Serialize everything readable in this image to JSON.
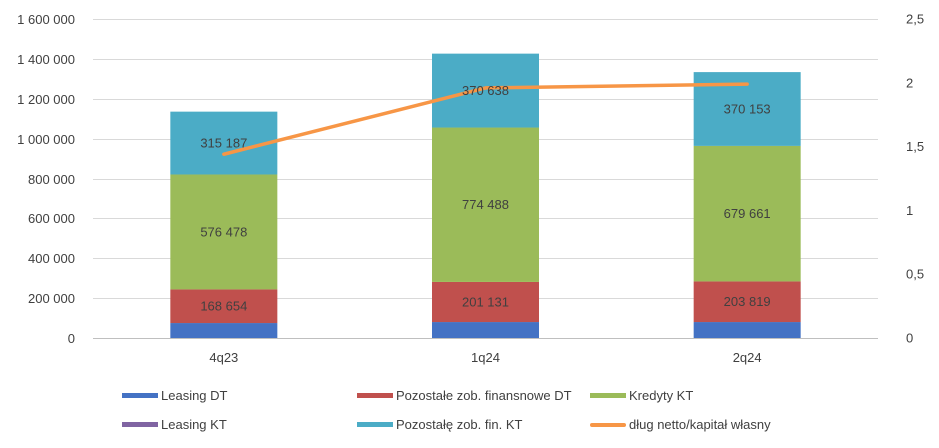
{
  "chart_data": {
    "type": "bar",
    "stacked": true,
    "categories": [
      "4q23",
      "1q24",
      "2q24"
    ],
    "series": [
      {
        "name": "Leasing DT",
        "values": [
          75000,
          80000,
          80000
        ],
        "color": "#4472C4"
      },
      {
        "name": "Pozostałe zob. finansnowe DT",
        "values": [
          168654,
          201131,
          203819
        ],
        "value_labels": [
          "168 654",
          "201 131",
          "203 819"
        ],
        "color": "#C0504D"
      },
      {
        "name": "Kredyty KT",
        "values": [
          576478,
          774488,
          679661
        ],
        "value_labels": [
          "576 478",
          "774 488",
          "679 661"
        ],
        "color": "#9BBB59"
      },
      {
        "name": "Leasing KT",
        "values": [
          0,
          0,
          0
        ],
        "color": "#8064A2"
      },
      {
        "name": "Pozostałę zob. fin. KT",
        "values": [
          315187,
          370638,
          370153
        ],
        "value_labels": [
          "315 187",
          "370 638",
          "370 153"
        ],
        "color": "#4BACC6"
      }
    ],
    "line_series": {
      "name": "dług netto/kapitał własny",
      "values": [
        1.44,
        1.96,
        1.99
      ],
      "axis": "secondary",
      "color": "#F79646"
    },
    "y_axis": {
      "ylim": [
        0,
        1600000
      ],
      "ticks": [
        0,
        200000,
        400000,
        600000,
        800000,
        1000000,
        1200000,
        1400000,
        1600000
      ],
      "tick_labels": [
        "0",
        "200 000",
        "400 000",
        "600 000",
        "800 000",
        "1 000 000",
        "1 200 000",
        "1 400 000",
        "1 600 000"
      ]
    },
    "y2_axis": {
      "ylim": [
        0,
        2.5
      ],
      "ticks": [
        0,
        0.5,
        1,
        1.5,
        2,
        2.5
      ],
      "tick_labels": [
        "0",
        "0,5",
        "1",
        "1,5",
        "2",
        "2,5"
      ]
    },
    "grid": true,
    "legend_position": "bottom"
  }
}
